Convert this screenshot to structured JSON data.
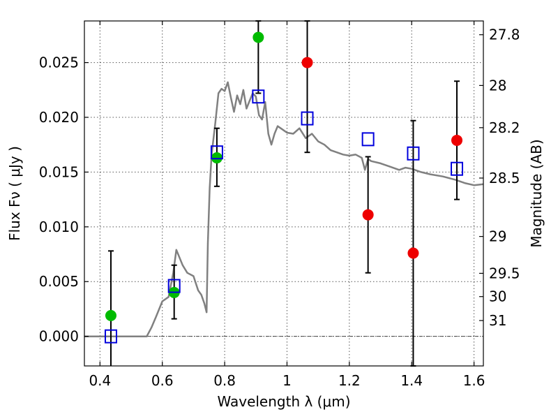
{
  "chart_data": {
    "type": "scatter",
    "xlabel": "Wavelength  λ (μm)",
    "ylabel": "Flux  Fν  ( μJy )",
    "ylabel_right": "Magnitude (AB)",
    "xlim": [
      0.35,
      1.63
    ],
    "ylim": [
      -0.0027,
      0.0288
    ],
    "x_ticks": [
      0.4,
      0.6,
      0.8,
      1.0,
      1.2,
      1.4,
      1.6
    ],
    "x_tick_labels": [
      "0.4",
      "0.6",
      "0.8",
      "1",
      "1.2",
      "1.4",
      "1.6"
    ],
    "y_ticks": [
      0.0,
      0.005,
      0.01,
      0.015,
      0.02,
      0.025
    ],
    "y_tick_labels": [
      "0.000",
      "0.005",
      "0.010",
      "0.015",
      "0.020",
      "0.025"
    ],
    "right_ticks": [
      {
        "label": "27.8",
        "mag": 27.8
      },
      {
        "label": "28",
        "mag": 28.0
      },
      {
        "label": "28.2",
        "mag": 28.2
      },
      {
        "label": "28.5",
        "mag": 28.5
      },
      {
        "label": "29",
        "mag": 29.0
      },
      {
        "label": "29.5",
        "mag": 29.5
      },
      {
        "label": "30",
        "mag": 30.0
      },
      {
        "label": "31",
        "mag": 31.0
      }
    ],
    "grid": true,
    "colors": {
      "spectrum": "#808080",
      "detection": "#00bb00",
      "upper_limit": "#ee0000",
      "model": "#0000dd",
      "errorbar": "#000000"
    },
    "spectrum": {
      "x": [
        0.35,
        0.55,
        0.565,
        0.58,
        0.6,
        0.62,
        0.635,
        0.645,
        0.655,
        0.665,
        0.68,
        0.7,
        0.715,
        0.725,
        0.735,
        0.742,
        0.746,
        0.752,
        0.758,
        0.763,
        0.77,
        0.78,
        0.79,
        0.8,
        0.81,
        0.82,
        0.83,
        0.84,
        0.85,
        0.86,
        0.87,
        0.88,
        0.89,
        0.9,
        0.91,
        0.92,
        0.93,
        0.94,
        0.95,
        0.96,
        0.97,
        0.98,
        0.99,
        1.0,
        1.02,
        1.04,
        1.06,
        1.08,
        1.1,
        1.12,
        1.14,
        1.16,
        1.18,
        1.2,
        1.22,
        1.24,
        1.25,
        1.26,
        1.27,
        1.3,
        1.33,
        1.36,
        1.38,
        1.4,
        1.43,
        1.46,
        1.5,
        1.54,
        1.57,
        1.6,
        1.63
      ],
      "y": [
        0.0,
        0.0,
        0.0008,
        0.0018,
        0.0032,
        0.0036,
        0.0058,
        0.0079,
        0.0072,
        0.0065,
        0.0058,
        0.0055,
        0.0042,
        0.0038,
        0.003,
        0.0022,
        0.0085,
        0.0135,
        0.0165,
        0.0178,
        0.0195,
        0.0222,
        0.0226,
        0.0224,
        0.0232,
        0.0218,
        0.0205,
        0.022,
        0.0212,
        0.0225,
        0.0208,
        0.0215,
        0.0222,
        0.0219,
        0.0202,
        0.0198,
        0.0214,
        0.0185,
        0.0175,
        0.0185,
        0.0192,
        0.019,
        0.0188,
        0.0186,
        0.0185,
        0.019,
        0.0181,
        0.0185,
        0.0178,
        0.0175,
        0.017,
        0.0168,
        0.0166,
        0.0165,
        0.0166,
        0.0163,
        0.0152,
        0.0162,
        0.016,
        0.0158,
        0.0155,
        0.0152,
        0.0154,
        0.0153,
        0.015,
        0.0148,
        0.0146,
        0.0143,
        0.014,
        0.0138,
        0.0139
      ]
    },
    "series": [
      {
        "marker": "circle-green",
        "points": [
          {
            "x": 0.435,
            "y": 0.0019,
            "yerr_low": -0.0037,
            "yerr_high": 0.0078
          },
          {
            "x": 0.638,
            "y": 0.004,
            "yerr_low": 0.0016,
            "yerr_high": 0.0065
          },
          {
            "x": 0.775,
            "y": 0.0163,
            "yerr_low": 0.0137,
            "yerr_high": 0.019
          },
          {
            "x": 0.908,
            "y": 0.0273,
            "yerr_low": 0.0222,
            "yerr_high": 0.0288
          }
        ]
      },
      {
        "marker": "circle-red",
        "points": [
          {
            "x": 1.065,
            "y": 0.025,
            "yerr_low": 0.0168,
            "yerr_high": 0.0288
          },
          {
            "x": 1.26,
            "y": 0.0111,
            "yerr_low": 0.0058,
            "yerr_high": 0.0164
          },
          {
            "x": 1.405,
            "y": 0.0076,
            "yerr_low": -0.0027,
            "yerr_high": 0.0197
          },
          {
            "x": 1.545,
            "y": 0.0179,
            "yerr_low": 0.0125,
            "yerr_high": 0.0233
          }
        ]
      },
      {
        "marker": "square-blue",
        "points": [
          {
            "x": 0.435,
            "y": 0.0
          },
          {
            "x": 0.638,
            "y": 0.0046
          },
          {
            "x": 0.775,
            "y": 0.0168
          },
          {
            "x": 0.908,
            "y": 0.0219
          },
          {
            "x": 1.065,
            "y": 0.0199
          },
          {
            "x": 1.26,
            "y": 0.018
          },
          {
            "x": 1.405,
            "y": 0.0167
          },
          {
            "x": 1.545,
            "y": 0.0153
          }
        ]
      }
    ]
  }
}
